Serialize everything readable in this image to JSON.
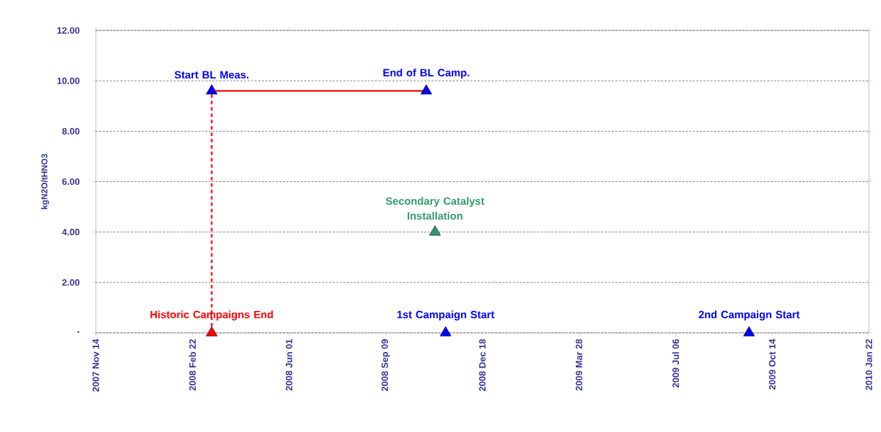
{
  "chart_data": {
    "type": "scatter",
    "ylabel": "kgN2O/tHNO3",
    "xlim": [
      "2007-11-14",
      "2010-01-22"
    ],
    "xticks": [
      {
        "value": "2007-11-14",
        "label": "2007 Nov 14"
      },
      {
        "value": "2008-02-22",
        "label": "2008 Feb 22"
      },
      {
        "value": "2008-06-01",
        "label": "2008 Jun 01"
      },
      {
        "value": "2008-09-09",
        "label": "2008 Sep 09"
      },
      {
        "value": "2008-12-18",
        "label": "2008 Dec 18"
      },
      {
        "value": "2009-03-28",
        "label": "2009 Mar 28"
      },
      {
        "value": "2009-07-06",
        "label": "2009 Jul 06"
      },
      {
        "value": "2009-10-14",
        "label": "2009 Oct 14"
      },
      {
        "value": "2010-01-22",
        "label": "2010 Jan 22"
      }
    ],
    "ylim": [
      0,
      12
    ],
    "yticks": [
      {
        "value": 0,
        "label": "-"
      },
      {
        "value": 2,
        "label": "2.00"
      },
      {
        "value": 4,
        "label": "4.00"
      },
      {
        "value": 6,
        "label": "6.00"
      },
      {
        "value": 8,
        "label": "8.00"
      },
      {
        "value": 10,
        "label": "10.00"
      },
      {
        "value": 12,
        "label": "12.00"
      }
    ],
    "grid": "y",
    "marker": "triangle",
    "series": [
      {
        "type": "line",
        "color": "#ff0000",
        "line_style": "solid",
        "marker": "none",
        "x": [
          "2008-03-13",
          "2008-10-21"
        ],
        "values": [
          9.6,
          9.6
        ]
      },
      {
        "type": "line",
        "color": "#ff0000",
        "line_style": "dashed",
        "marker": "none",
        "x": [
          "2008-03-13",
          "2008-03-13"
        ],
        "values": [
          0,
          9.6
        ]
      },
      {
        "name": "Historic Campaigns End",
        "color": "#ff0000",
        "x": [
          "2008-03-13"
        ],
        "values": [
          0
        ]
      },
      {
        "name": "Start BL Meas.",
        "color": "#0000ff",
        "x": [
          "2008-03-13"
        ],
        "values": [
          9.6
        ]
      },
      {
        "name": "End of BL Camp.",
        "color": "#0000ff",
        "x": [
          "2008-10-21"
        ],
        "values": [
          9.6
        ]
      },
      {
        "name": "Secondary Catalyst Installation",
        "color": "#339966",
        "x": [
          "2008-10-30"
        ],
        "values": [
          4.0
        ]
      },
      {
        "name": "1st Campaign Start",
        "color": "#0000ff",
        "x": [
          "2008-11-10"
        ],
        "values": [
          0
        ]
      },
      {
        "name": "2nd Campaign Start",
        "color": "#0000ff",
        "x": [
          "2009-09-20"
        ],
        "values": [
          0
        ]
      }
    ]
  }
}
